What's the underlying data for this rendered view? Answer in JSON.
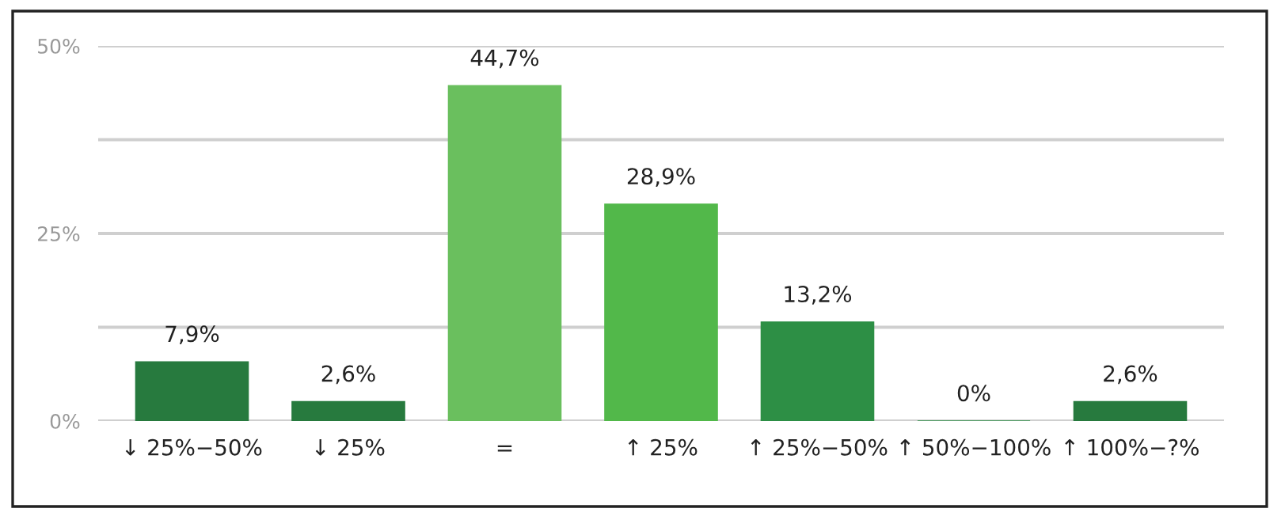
{
  "chart_data": {
    "type": "bar",
    "categories": [
      "↓ 25%−50%",
      "↓ 25%",
      "=",
      "↑ 25%",
      "↑ 25%−50%",
      "↑ 50%−100%",
      "↑ 100%−?%"
    ],
    "values": [
      7.9,
      2.6,
      44.7,
      28.9,
      13.2,
      0,
      2.6
    ],
    "colors": [
      "#277a3e",
      "#277a3e",
      "#6abf5e",
      "#52b84a",
      "#2d8f45",
      "#2d8f45",
      "#277a3e"
    ],
    "value_labels": [
      "7,9%",
      "2,6%",
      "44,7%",
      "28,9%",
      "13,2%",
      "0%",
      "2,6%"
    ],
    "ylim": [
      0,
      50
    ],
    "yticks": [
      {
        "value": 0,
        "label": "0%"
      },
      {
        "value": 12.5,
        "label": null
      },
      {
        "value": 25,
        "label": "25%"
      },
      {
        "value": 37.5,
        "label": null
      },
      {
        "value": 50,
        "label": "50%"
      }
    ],
    "grid": "y",
    "legend": false
  }
}
